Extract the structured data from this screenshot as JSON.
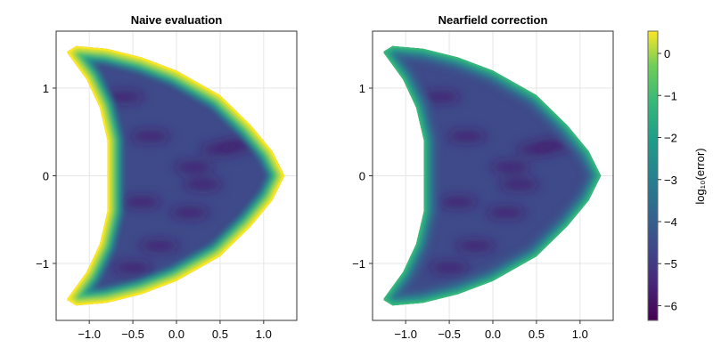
{
  "chart_data": [
    {
      "type": "heatmap",
      "title": "Naive evaluation",
      "xlabel": "",
      "ylabel": "",
      "xlim": [
        -1.38,
        1.38
      ],
      "ylim": [
        -1.65,
        1.65
      ],
      "xticks": [
        -1.0,
        -0.5,
        0.0,
        0.5,
        1.0
      ],
      "xtick_labels": [
        "−1.0",
        "−0.5",
        "0.0",
        "0.5",
        "1.0"
      ],
      "yticks": [
        -1,
        0,
        1
      ],
      "ytick_labels": [
        "−1",
        "0",
        "1"
      ],
      "grid": true,
      "boundary_log10_error": 0.3,
      "interior_log10_error": -5.5
    },
    {
      "type": "heatmap",
      "title": "Nearfield correction",
      "xlabel": "",
      "ylabel": "",
      "xlim": [
        -1.38,
        1.38
      ],
      "ylim": [
        -1.65,
        1.65
      ],
      "xticks": [
        -1.0,
        -0.5,
        0.0,
        0.5,
        1.0
      ],
      "xtick_labels": [
        "−1.0",
        "−0.5",
        "0.0",
        "0.5",
        "1.0"
      ],
      "yticks": [
        -1,
        0,
        1
      ],
      "ytick_labels": [
        "−1",
        "0",
        "1"
      ],
      "grid": true,
      "boundary_log10_error": -2.5,
      "interior_log10_error": -5.5
    }
  ],
  "colorbar": {
    "label": "log₁₀(error)",
    "colormap": "viridis",
    "range": [
      -6.35,
      0.53
    ],
    "ticks": [
      0,
      -1,
      -2,
      -3,
      -4,
      -5,
      -6
    ],
    "tick_labels": [
      "0",
      "−1",
      "−2",
      "−3",
      "−4",
      "−5",
      "−6"
    ]
  }
}
